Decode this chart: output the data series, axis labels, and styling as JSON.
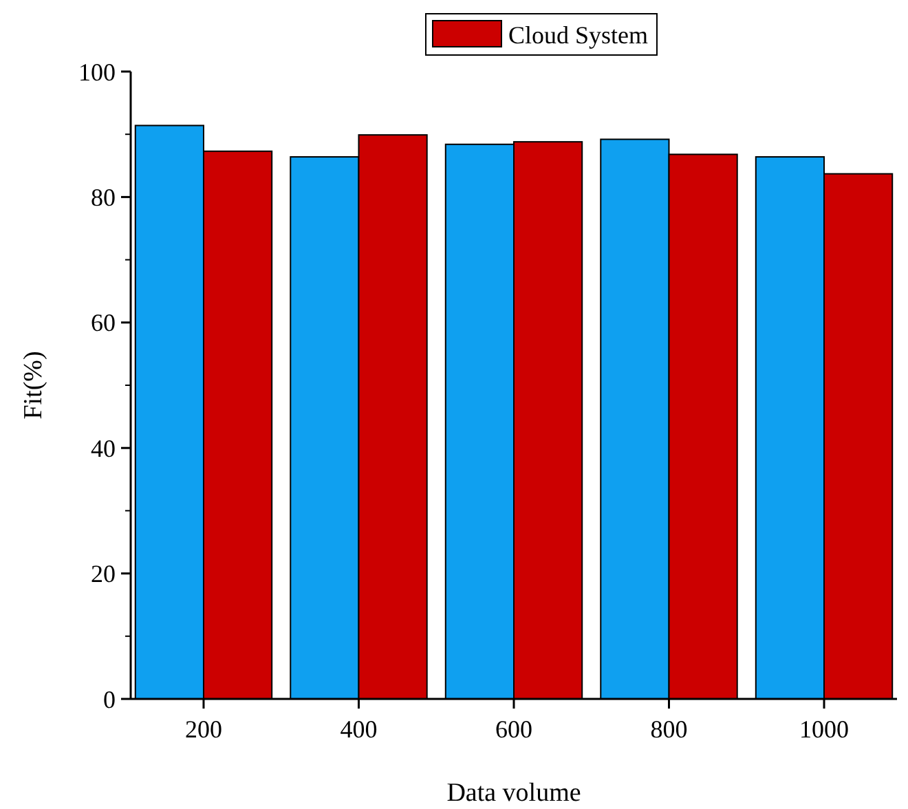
{
  "chart_data": {
    "type": "bar",
    "xlabel": "Data volume",
    "ylabel": "Fit(%)",
    "categories": [
      "200",
      "400",
      "600",
      "800",
      "1000"
    ],
    "series": [
      {
        "color": "#0fa0f0",
        "values": [
          91.4,
          86.4,
          88.4,
          89.2,
          86.4
        ]
      },
      {
        "name": "Cloud System",
        "color": "#cc0000",
        "values": [
          87.3,
          89.9,
          88.8,
          86.8,
          83.7
        ]
      }
    ],
    "ylim": [
      0,
      100
    ],
    "yticks": [
      0,
      20,
      40,
      60,
      80,
      100
    ],
    "legend": "top",
    "grid": false
  }
}
